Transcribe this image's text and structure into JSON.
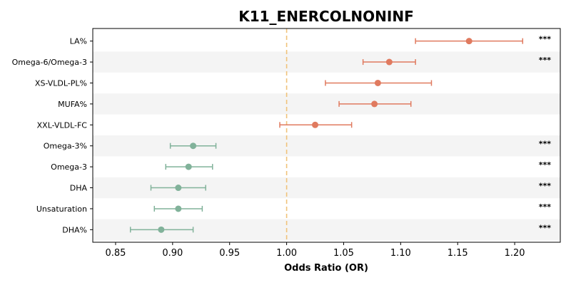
{
  "chart_data": {
    "type": "forest",
    "title": "K11_ENERCOLNONINF",
    "xlabel": "Odds Ratio (OR)",
    "ylabel": "",
    "xlim": [
      0.83,
      1.24
    ],
    "xticks": [
      0.85,
      0.9,
      0.95,
      1.0,
      1.05,
      1.1,
      1.15,
      1.2
    ],
    "xtick_labels": [
      "0.85",
      "0.90",
      "0.95",
      "1.00",
      "1.05",
      "1.10",
      "1.15",
      "1.20"
    ],
    "reference_line": 1.0,
    "reference_color": "#f0c27a",
    "positive_color": "#e07a5f",
    "negative_color": "#81b29a",
    "band_color": "#f4f4f4",
    "rows": [
      {
        "label": "LA%",
        "or": 1.16,
        "lo": 1.113,
        "hi": 1.207,
        "sig": "***"
      },
      {
        "label": "Omega-6/Omega-3",
        "or": 1.09,
        "lo": 1.067,
        "hi": 1.113,
        "sig": "***"
      },
      {
        "label": "XS-VLDL-PL%",
        "or": 1.08,
        "lo": 1.034,
        "hi": 1.127,
        "sig": ""
      },
      {
        "label": "MUFA%",
        "or": 1.077,
        "lo": 1.046,
        "hi": 1.109,
        "sig": ""
      },
      {
        "label": "XXL-VLDL-FC",
        "or": 1.025,
        "lo": 0.994,
        "hi": 1.057,
        "sig": ""
      },
      {
        "label": "Omega-3%",
        "or": 0.918,
        "lo": 0.898,
        "hi": 0.938,
        "sig": "***"
      },
      {
        "label": "Omega-3",
        "or": 0.914,
        "lo": 0.894,
        "hi": 0.935,
        "sig": "***"
      },
      {
        "label": "DHA",
        "or": 0.905,
        "lo": 0.881,
        "hi": 0.929,
        "sig": "***"
      },
      {
        "label": "Unsaturation",
        "or": 0.905,
        "lo": 0.884,
        "hi": 0.926,
        "sig": "***"
      },
      {
        "label": "DHA%",
        "or": 0.89,
        "lo": 0.863,
        "hi": 0.918,
        "sig": "***"
      }
    ]
  }
}
